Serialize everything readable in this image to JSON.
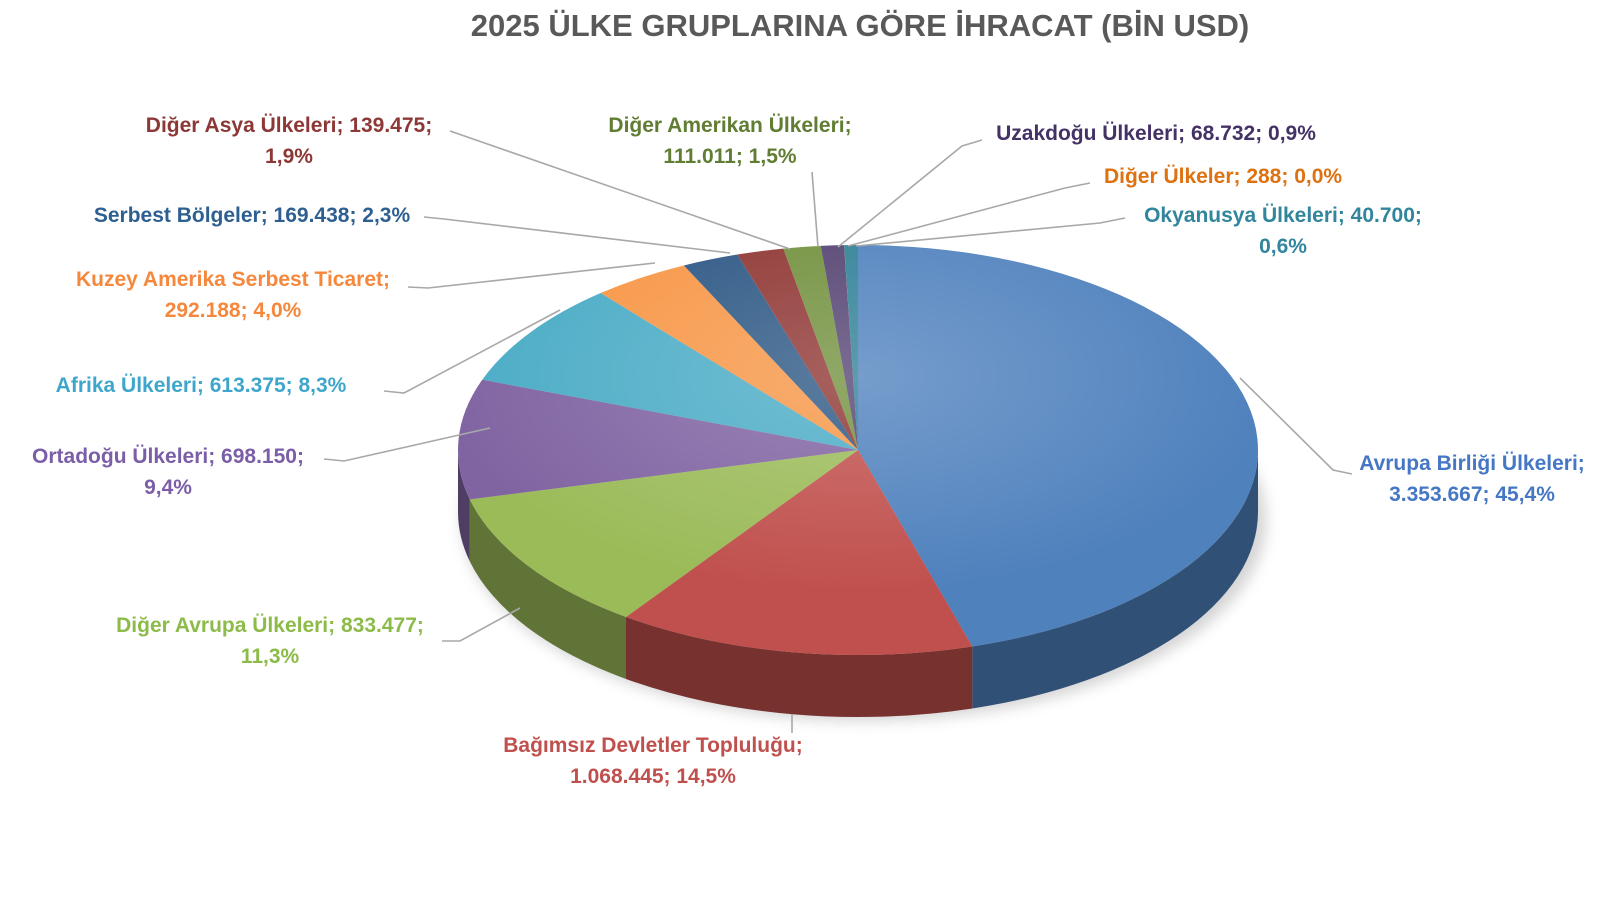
{
  "title": "2025 ÜLKE GRUPLARINA GÖRE İHRACAT (BİN USD)",
  "chart_data": {
    "type": "pie",
    "projection": "3d",
    "title": "2025 ÜLKE GRUPLARINA GÖRE İHRACAT (BİN USD)",
    "title_color": "#595959",
    "value_unit": "BİN USD",
    "label_format": "name; value; percent",
    "start_angle_deg": 0,
    "direction": "clockwise",
    "legend_position": "none",
    "leader_line_color": "#A8A8A8",
    "slices": [
      {
        "id": "avrupa-birligi-ulkeleri",
        "name": "Avrupa Birliği Ülkeleri",
        "value": 3353667,
        "value_display": "3.353.667",
        "percent": 45.4,
        "percent_display": "45,4%",
        "color": "#4F81BD",
        "label_color": "#4577C4",
        "label_lines": [
          "Avrupa Birliği Ülkeleri;",
          "3.353.667; 45,4%"
        ]
      },
      {
        "id": "bagimsiz-devletler-toplulugu",
        "name": "Bağımsız Devletler Topluluğu",
        "value": 1068445,
        "value_display": "1.068.445",
        "percent": 14.5,
        "percent_display": "14,5%",
        "color": "#C0504D",
        "label_color": "#C0504D",
        "label_lines": [
          "Bağımsız Devletler Topluluğu;",
          "1.068.445; 14,5%"
        ]
      },
      {
        "id": "diger-avrupa-ulkeleri",
        "name": "Diğer Avrupa Ülkeleri",
        "value": 833477,
        "value_display": "833.477",
        "percent": 11.3,
        "percent_display": "11,3%",
        "color": "#9BBB59",
        "label_color": "#8DBB4A",
        "label_lines": [
          "Diğer Avrupa Ülkeleri; 833.477;",
          "11,3%"
        ]
      },
      {
        "id": "ortadogu-ulkeleri",
        "name": "Ortadoğu Ülkeleri",
        "value": 698150,
        "value_display": "698.150",
        "percent": 9.4,
        "percent_display": "9,4%",
        "color": "#8064A2",
        "label_color": "#7B5EA7",
        "label_lines": [
          "Ortadoğu Ülkeleri; 698.150;",
          "9,4%"
        ]
      },
      {
        "id": "afrika-ulkeleri",
        "name": "Afrika Ülkeleri",
        "value": 613375,
        "value_display": "613.375",
        "percent": 8.3,
        "percent_display": "8,3%",
        "color": "#4BACC6",
        "label_color": "#3FA6CB",
        "label_lines": [
          "Afrika Ülkeleri; 613.375; 8,3%"
        ]
      },
      {
        "id": "kuzey-amerika-serbest-ticaret",
        "name": "Kuzey Amerika Serbest Ticaret",
        "value": 292188,
        "value_display": "292.188",
        "percent": 4.0,
        "percent_display": "4,0%",
        "color": "#F79646",
        "label_color": "#F5883D",
        "label_lines": [
          "Kuzey Amerika Serbest Ticaret;",
          "292.188; 4,0%"
        ]
      },
      {
        "id": "serbest-bolgeler",
        "name": "Serbest Bölgeler",
        "value": 169438,
        "value_display": "169.438",
        "percent": 2.3,
        "percent_display": "2,3%",
        "color": "#2C5784",
        "label_color": "#2D5F91",
        "label_lines": [
          "Serbest Bölgeler; 169.438; 2,3%"
        ]
      },
      {
        "id": "diger-asya-ulkeleri",
        "name": "Diğer Asya Ülkeleri",
        "value": 139475,
        "value_display": "139.475",
        "percent": 1.9,
        "percent_display": "1,9%",
        "color": "#8E3532",
        "label_color": "#8C3836",
        "label_lines": [
          "Diğer Asya Ülkeleri; 139.475;",
          "1,9%"
        ]
      },
      {
        "id": "diger-amerikan-ulkeleri",
        "name": "Diğer Amerikan Ülkeleri",
        "value": 111011,
        "value_display": "111.011",
        "percent": 1.5,
        "percent_display": "1,5%",
        "color": "#71903C",
        "label_color": "#617D33",
        "label_lines": [
          "Diğer Amerikan Ülkeleri;",
          "111.011; 1,5%"
        ]
      },
      {
        "id": "uzakdogu-ulkeleri",
        "name": "Uzakdoğu Ülkeleri",
        "value": 68732,
        "value_display": "68.732",
        "percent": 0.9,
        "percent_display": "0,9%",
        "color": "#534271",
        "label_color": "#443266",
        "label_lines": [
          "Uzakdoğu Ülkeleri; 68.732; 0,9%"
        ]
      },
      {
        "id": "diger-ulkeler",
        "name": "Diğer Ülkeler",
        "value": 288,
        "value_display": "288",
        "percent": 0.0,
        "percent_display": "0,0%",
        "color": "#B65708",
        "label_color": "#DE7110",
        "label_lines": [
          "Diğer Ülkeler; 288; 0,0%"
        ]
      },
      {
        "id": "okyanusya-ulkeleri",
        "name": "Okyanusya Ülkeleri",
        "value": 40700,
        "value_display": "40.700",
        "percent": 0.6,
        "percent_display": "0,6%",
        "color": "#2E8096",
        "label_color": "#31859C",
        "label_lines": [
          "Okyanusya Ülkeleri; 40.700;",
          "0,6%"
        ]
      }
    ]
  }
}
